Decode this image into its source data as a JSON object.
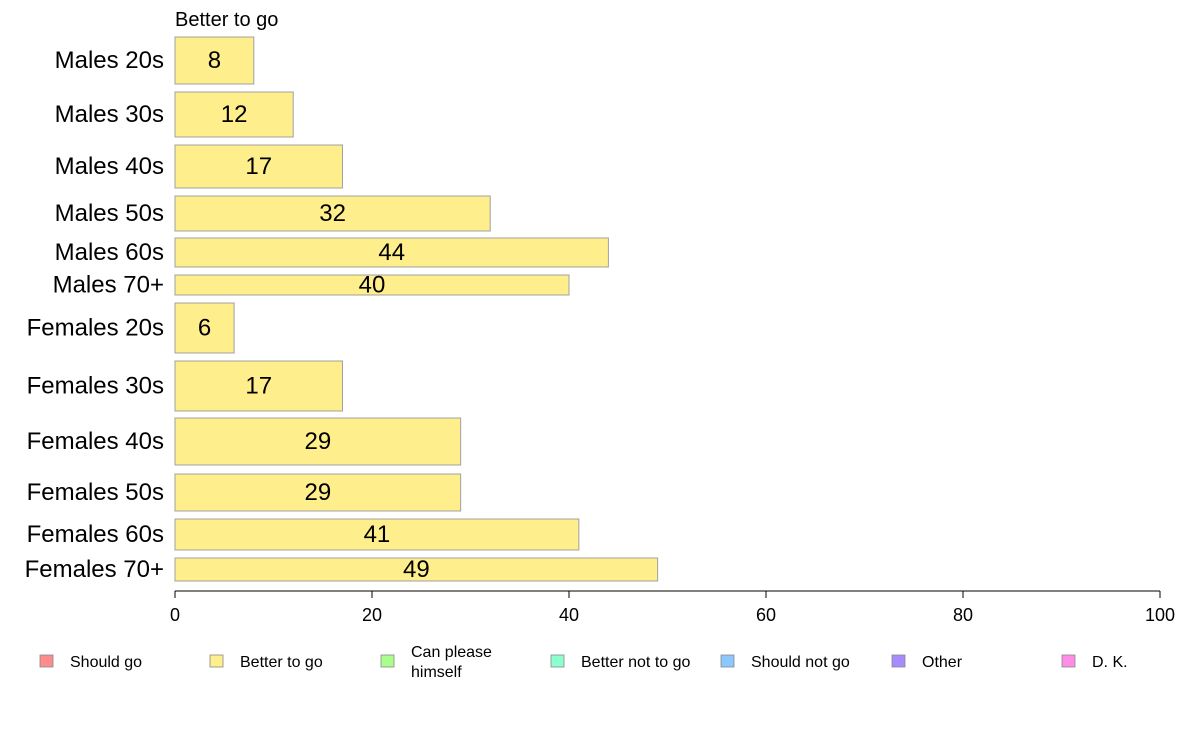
{
  "chart_data": {
    "type": "bar",
    "orientation": "horizontal",
    "title": "Better to go",
    "categories": [
      "Males 20s",
      "Males 30s",
      "Males 40s",
      "Males 50s",
      "Males 60s",
      "Males 70+",
      "Females 20s",
      "Females 30s",
      "Females 40s",
      "Females 50s",
      "Females 60s",
      "Females 70+"
    ],
    "series": [
      {
        "name": "Better to go",
        "values": [
          8,
          12,
          17,
          32,
          44,
          40,
          6,
          17,
          29,
          29,
          41,
          49
        ]
      }
    ],
    "xlim": [
      0,
      100
    ],
    "xticks": [
      0,
      20,
      40,
      60,
      80,
      100
    ],
    "xlabel": "",
    "ylabel": "",
    "grid": false,
    "legend_position": "bottom",
    "legend": [
      {
        "label": "Should go",
        "color": "#ff8c8c"
      },
      {
        "label": "Better to go",
        "color": "#ffee8c"
      },
      {
        "label": "Can please himself",
        "color": "#aaff8c"
      },
      {
        "label": "Better not to go",
        "color": "#8cffcf"
      },
      {
        "label": "Should not go",
        "color": "#8cc8ff"
      },
      {
        "label": "Other",
        "color": "#a68cff"
      },
      {
        "label": "D. K.",
        "color": "#ff8ce6"
      }
    ],
    "bar_color": "#ffee8c",
    "bar_stroke": "#a0a0a0"
  }
}
